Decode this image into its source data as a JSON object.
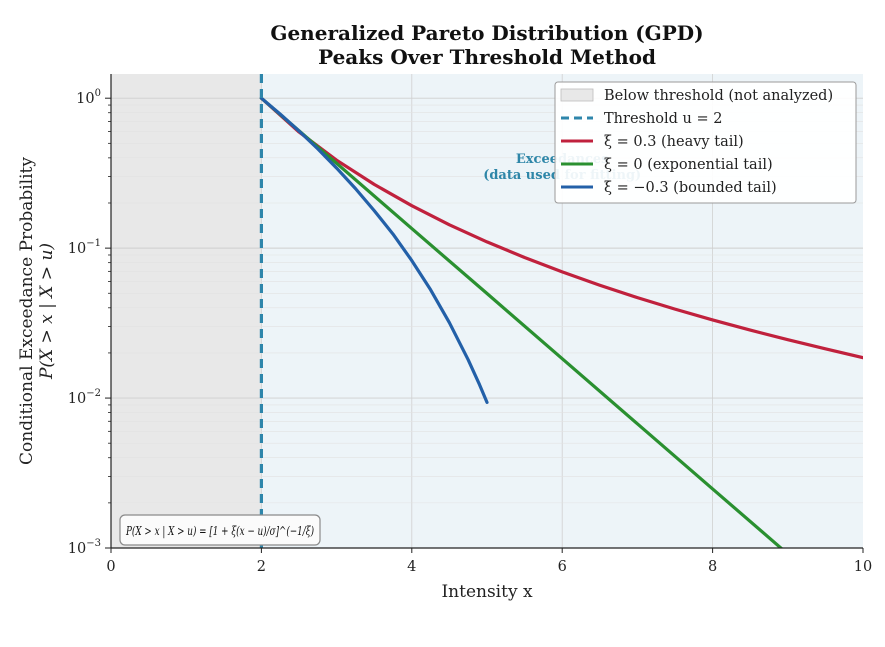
{
  "chart_data": {
    "type": "line",
    "title": "Generalized Pareto Distribution (GPD)",
    "subtitle": "Peaks Over Threshold Method",
    "xlabel": "Intensity  x",
    "ylabel": "Conditional Exceedance Probability",
    "ylabel2": "P(X > x | X > u)",
    "xlim": [
      0,
      10
    ],
    "ylim": [
      0.001,
      1.45
    ],
    "yscale": "log",
    "grid": true,
    "legend_position": "top-right",
    "x_ticks": [
      {
        "value": 0,
        "label": "0"
      },
      {
        "value": 2,
        "label": "2"
      },
      {
        "value": 4,
        "label": "4"
      },
      {
        "value": 6,
        "label": "6"
      },
      {
        "value": 8,
        "label": "8"
      },
      {
        "value": 10,
        "label": "10"
      }
    ],
    "y_ticks": [
      {
        "value": 1,
        "base": "10",
        "exp": "0"
      },
      {
        "value": 0.1,
        "base": "10",
        "exp": "−1"
      },
      {
        "value": 0.01,
        "base": "10",
        "exp": "−2"
      },
      {
        "value": 0.001,
        "base": "10",
        "exp": "−3"
      }
    ],
    "threshold": {
      "value": 2,
      "label": "Threshold u = 2",
      "color": "#2e86ab"
    },
    "shaded_region": {
      "from": 0,
      "to": 2,
      "label": "Below threshold (not analyzed)",
      "color": "#e8e8e8"
    },
    "exceedance_region_color": "#edf4f8",
    "annotation": {
      "line1": "Exceedances",
      "line2": "(data used for fitting)",
      "x": 6,
      "color": "#2e86a8"
    },
    "formula": "P(X > x | X > u) = [1 + ξ(x − u)/σ]^(−1/ξ)",
    "series": [
      {
        "name": "ξ = 0.3 (heavy tail)",
        "color": "#c0213d",
        "x": [
          2,
          2.5,
          3,
          3.5,
          4,
          4.5,
          5,
          5.5,
          6,
          6.5,
          7,
          7.5,
          8,
          8.5,
          9,
          9.5,
          10
        ],
        "y": [
          1.0,
          0.595,
          0.386,
          0.266,
          0.192,
          0.143,
          0.11,
          0.0866,
          0.0694,
          0.0566,
          0.0468,
          0.0392,
          0.0332,
          0.0284,
          0.0245,
          0.0213,
          0.0186
        ]
      },
      {
        "name": "ξ = 0 (exponential tail)",
        "color": "#2a9030",
        "x": [
          2,
          3,
          4,
          5,
          6,
          7,
          8,
          9
        ],
        "y": [
          1.0,
          0.368,
          0.135,
          0.0498,
          0.0183,
          0.00674,
          0.00248,
          0.000912
        ]
      },
      {
        "name": "ξ = −0.3 (bounded tail)",
        "color": "#2360a8",
        "x": [
          2,
          2.25,
          2.5,
          2.75,
          3,
          3.25,
          3.5,
          3.75,
          4,
          4.25,
          4.5,
          4.75,
          4.9,
          5.0
        ],
        "y": [
          1.0,
          0.783,
          0.604,
          0.459,
          0.342,
          0.25,
          0.178,
          0.124,
          0.0826,
          0.0527,
          0.0318,
          0.018,
          0.0123,
          0.00936
        ]
      }
    ]
  }
}
